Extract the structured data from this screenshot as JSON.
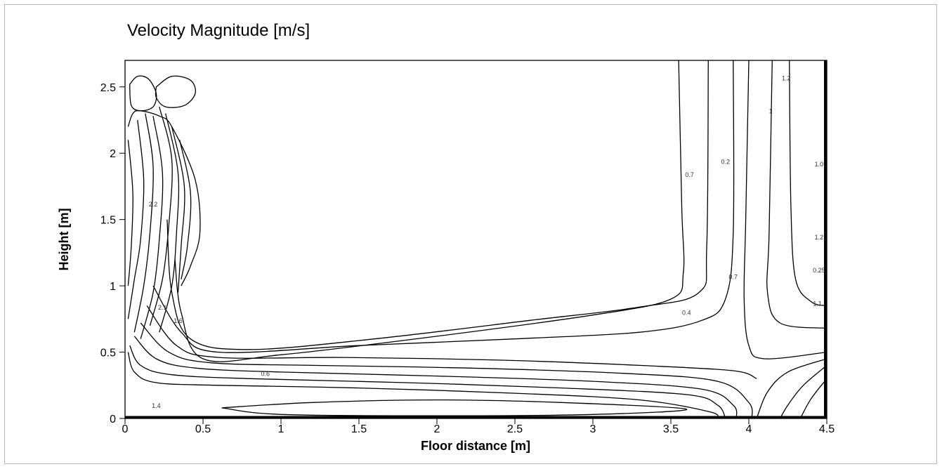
{
  "chart_data": {
    "type": "contour",
    "title": "Velocity Magnitude [m/s]",
    "xlabel": "Floor distance [m]",
    "ylabel": "Height [m]",
    "xlim": [
      0,
      4.5
    ],
    "ylim": [
      0,
      2.7
    ],
    "xticks": [
      0,
      0.5,
      1,
      1.5,
      2,
      2.5,
      3,
      3.5,
      4,
      4.5
    ],
    "yticks": [
      0,
      0.5,
      1,
      1.5,
      2,
      2.5
    ],
    "xtick_labels": [
      "0",
      "0.5",
      "1",
      "1.5",
      "2",
      "2.5",
      "3",
      "3.5",
      "4",
      "4.5"
    ],
    "ytick_labels": [
      "0",
      "0.5",
      "1",
      "1.5",
      "2",
      "2.5"
    ],
    "grid": false,
    "contour_labels": [
      {
        "text": "0.6",
        "x": 0.9,
        "y": 0.32
      },
      {
        "text": "0.4",
        "x": 3.6,
        "y": 0.78
      },
      {
        "text": "0.7",
        "x": 3.9,
        "y": 1.05
      },
      {
        "text": "0.7",
        "x": 3.62,
        "y": 1.82
      },
      {
        "text": "0.2",
        "x": 3.85,
        "y": 1.92
      },
      {
        "text": "1",
        "x": 4.14,
        "y": 2.3
      },
      {
        "text": "1.2",
        "x": 4.24,
        "y": 2.55
      },
      {
        "text": "1.2",
        "x": 4.45,
        "y": 1.35
      },
      {
        "text": "0.25",
        "x": 4.45,
        "y": 1.1
      },
      {
        "text": "1.0",
        "x": 4.45,
        "y": 1.9
      },
      {
        "text": "1.1",
        "x": 4.44,
        "y": 0.85
      },
      {
        "text": "1.4",
        "x": 0.2,
        "y": 0.08
      },
      {
        "text": "2.2",
        "x": 0.18,
        "y": 1.6
      },
      {
        "text": "2.1",
        "x": 0.24,
        "y": 0.82
      },
      {
        "text": "1.6",
        "x": 0.34,
        "y": 0.72
      }
    ],
    "contours": [
      {
        "name": "floor-band-1",
        "points": [
          [
            0.02,
            0.5
          ],
          [
            0.06,
            0.35
          ],
          [
            0.2,
            0.27
          ],
          [
            0.6,
            0.25
          ],
          [
            1.5,
            0.23
          ],
          [
            2.5,
            0.19
          ],
          [
            3.3,
            0.14
          ],
          [
            3.75,
            0.05
          ],
          [
            3.8,
            0.0
          ]
        ]
      },
      {
        "name": "floor-band-2",
        "points": [
          [
            0.03,
            0.55
          ],
          [
            0.1,
            0.4
          ],
          [
            0.3,
            0.33
          ],
          [
            0.8,
            0.3
          ],
          [
            1.8,
            0.27
          ],
          [
            2.8,
            0.23
          ],
          [
            3.6,
            0.18
          ],
          [
            3.8,
            0.1
          ],
          [
            3.85,
            0.0
          ]
        ]
      },
      {
        "name": "floor-band-3",
        "points": [
          [
            0.06,
            0.62
          ],
          [
            0.2,
            0.45
          ],
          [
            0.45,
            0.38
          ],
          [
            1.0,
            0.35
          ],
          [
            2.0,
            0.32
          ],
          [
            3.0,
            0.28
          ],
          [
            3.7,
            0.22
          ],
          [
            3.9,
            0.1
          ],
          [
            3.92,
            0.0
          ]
        ]
      },
      {
        "name": "floor-band-4",
        "points": [
          [
            0.1,
            0.72
          ],
          [
            0.28,
            0.5
          ],
          [
            0.55,
            0.42
          ],
          [
            1.2,
            0.4
          ],
          [
            2.2,
            0.38
          ],
          [
            3.2,
            0.34
          ],
          [
            3.8,
            0.28
          ],
          [
            4.0,
            0.12
          ],
          [
            4.02,
            0.0
          ]
        ]
      },
      {
        "name": "floor-band-5",
        "points": [
          [
            0.14,
            0.85
          ],
          [
            0.33,
            0.55
          ],
          [
            0.6,
            0.46
          ],
          [
            1.4,
            0.46
          ],
          [
            2.4,
            0.44
          ],
          [
            3.3,
            0.4
          ],
          [
            3.9,
            0.36
          ],
          [
            4.05,
            0.3
          ]
        ]
      },
      {
        "name": "floor-band-6",
        "points": [
          [
            0.18,
            1.0
          ],
          [
            0.36,
            0.65
          ],
          [
            0.6,
            0.5
          ],
          [
            1.5,
            0.55
          ],
          [
            2.5,
            0.6
          ],
          [
            3.3,
            0.65
          ],
          [
            3.7,
            0.74
          ],
          [
            3.85,
            0.9
          ],
          [
            3.9,
            1.4
          ],
          [
            3.9,
            2.7
          ]
        ]
      },
      {
        "name": "main-elbow",
        "points": [
          [
            0.32,
            1.2
          ],
          [
            0.36,
            0.8
          ],
          [
            0.5,
            0.45
          ],
          [
            1.0,
            0.48
          ],
          [
            2.0,
            0.62
          ],
          [
            3.0,
            0.78
          ],
          [
            3.5,
            0.9
          ],
          [
            3.58,
            1.1
          ],
          [
            3.57,
            1.6
          ],
          [
            3.55,
            2.7
          ]
        ]
      },
      {
        "name": "inner-elbow",
        "points": [
          [
            0.27,
            1.5
          ],
          [
            0.3,
            0.95
          ],
          [
            0.42,
            0.6
          ],
          [
            0.8,
            0.52
          ],
          [
            1.6,
            0.6
          ],
          [
            2.6,
            0.74
          ],
          [
            3.3,
            0.84
          ],
          [
            3.68,
            0.95
          ],
          [
            3.73,
            1.3
          ],
          [
            3.74,
            2.7
          ]
        ]
      },
      {
        "name": "right-vertical-1",
        "points": [
          [
            4.0,
            2.7
          ],
          [
            3.98,
            1.5
          ],
          [
            3.97,
            0.9
          ],
          [
            4.0,
            0.55
          ],
          [
            4.1,
            0.45
          ],
          [
            4.5,
            0.5
          ]
        ]
      },
      {
        "name": "right-vertical-2",
        "points": [
          [
            4.15,
            2.7
          ],
          [
            4.13,
            1.4
          ],
          [
            4.12,
            0.95
          ],
          [
            4.2,
            0.72
          ],
          [
            4.5,
            0.68
          ]
        ]
      },
      {
        "name": "right-vertical-3",
        "points": [
          [
            4.26,
            2.7
          ],
          [
            4.27,
            1.6
          ],
          [
            4.3,
            1.05
          ],
          [
            4.4,
            0.88
          ],
          [
            4.5,
            0.85
          ]
        ]
      },
      {
        "name": "right-lower-1",
        "points": [
          [
            4.5,
            0.45
          ],
          [
            4.25,
            0.35
          ],
          [
            4.12,
            0.2
          ],
          [
            4.05,
            0.0
          ]
        ]
      },
      {
        "name": "right-lower-2",
        "points": [
          [
            4.5,
            0.4
          ],
          [
            4.35,
            0.25
          ],
          [
            4.25,
            0.1
          ],
          [
            4.2,
            0.0
          ]
        ]
      },
      {
        "name": "right-lower-3",
        "points": [
          [
            4.5,
            0.3
          ],
          [
            4.4,
            0.15
          ],
          [
            4.33,
            0.0
          ]
        ]
      },
      {
        "name": "floor-ellipse",
        "closed": true,
        "points": [
          [
            0.62,
            0.08
          ],
          [
            1.2,
            0.12
          ],
          [
            2.0,
            0.14
          ],
          [
            2.8,
            0.12
          ],
          [
            3.6,
            0.07
          ],
          [
            3.0,
            0.03
          ],
          [
            2.0,
            0.02
          ],
          [
            1.0,
            0.03
          ],
          [
            0.62,
            0.08
          ]
        ]
      },
      {
        "name": "jet-left-1",
        "points": [
          [
            0.02,
            2.1
          ],
          [
            0.05,
            1.7
          ],
          [
            0.04,
            1.3
          ],
          [
            0.02,
            1.0
          ]
        ]
      },
      {
        "name": "jet-left-2",
        "points": [
          [
            0.08,
            2.25
          ],
          [
            0.12,
            1.8
          ],
          [
            0.1,
            1.35
          ],
          [
            0.06,
            1.05
          ],
          [
            0.02,
            0.75
          ]
        ]
      },
      {
        "name": "jet-left-3",
        "points": [
          [
            0.13,
            2.3
          ],
          [
            0.18,
            1.9
          ],
          [
            0.16,
            1.4
          ],
          [
            0.12,
            1.0
          ],
          [
            0.06,
            0.65
          ]
        ]
      },
      {
        "name": "jet-left-4",
        "points": [
          [
            0.18,
            2.28
          ],
          [
            0.24,
            1.85
          ],
          [
            0.22,
            1.35
          ],
          [
            0.18,
            0.95
          ],
          [
            0.1,
            0.6
          ]
        ]
      },
      {
        "name": "jet-mid-1",
        "points": [
          [
            0.22,
            2.35
          ],
          [
            0.3,
            1.95
          ],
          [
            0.28,
            1.45
          ],
          [
            0.24,
            1.05
          ],
          [
            0.16,
            0.7
          ]
        ]
      },
      {
        "name": "jet-mid-2",
        "points": [
          [
            0.26,
            2.3
          ],
          [
            0.34,
            1.85
          ],
          [
            0.33,
            1.4
          ],
          [
            0.3,
            1.0
          ],
          [
            0.22,
            0.65
          ]
        ]
      },
      {
        "name": "jet-mid-3",
        "points": [
          [
            0.3,
            2.2
          ],
          [
            0.38,
            1.75
          ],
          [
            0.36,
            1.3
          ],
          [
            0.34,
            0.95
          ]
        ]
      },
      {
        "name": "jet-right",
        "points": [
          [
            0.35,
            2.1
          ],
          [
            0.42,
            1.7
          ],
          [
            0.4,
            1.3
          ],
          [
            0.36,
            1.05
          ]
        ]
      },
      {
        "name": "plume-outline",
        "points": [
          [
            0.02,
            2.2
          ],
          [
            0.05,
            2.3
          ],
          [
            0.1,
            2.32
          ],
          [
            0.22,
            2.28
          ],
          [
            0.3,
            2.2
          ],
          [
            0.45,
            1.8
          ],
          [
            0.48,
            1.4
          ],
          [
            0.42,
            1.15
          ],
          [
            0.36,
            1.0
          ]
        ]
      },
      {
        "name": "top-blob-1",
        "closed": true,
        "points": [
          [
            0.03,
            2.52
          ],
          [
            0.08,
            2.58
          ],
          [
            0.15,
            2.56
          ],
          [
            0.2,
            2.45
          ],
          [
            0.18,
            2.35
          ],
          [
            0.1,
            2.32
          ],
          [
            0.04,
            2.36
          ],
          [
            0.03,
            2.52
          ]
        ]
      },
      {
        "name": "top-blob-2",
        "closed": true,
        "points": [
          [
            0.2,
            2.5
          ],
          [
            0.3,
            2.58
          ],
          [
            0.42,
            2.55
          ],
          [
            0.45,
            2.45
          ],
          [
            0.38,
            2.36
          ],
          [
            0.26,
            2.35
          ],
          [
            0.2,
            2.42
          ],
          [
            0.2,
            2.5
          ]
        ]
      }
    ]
  }
}
